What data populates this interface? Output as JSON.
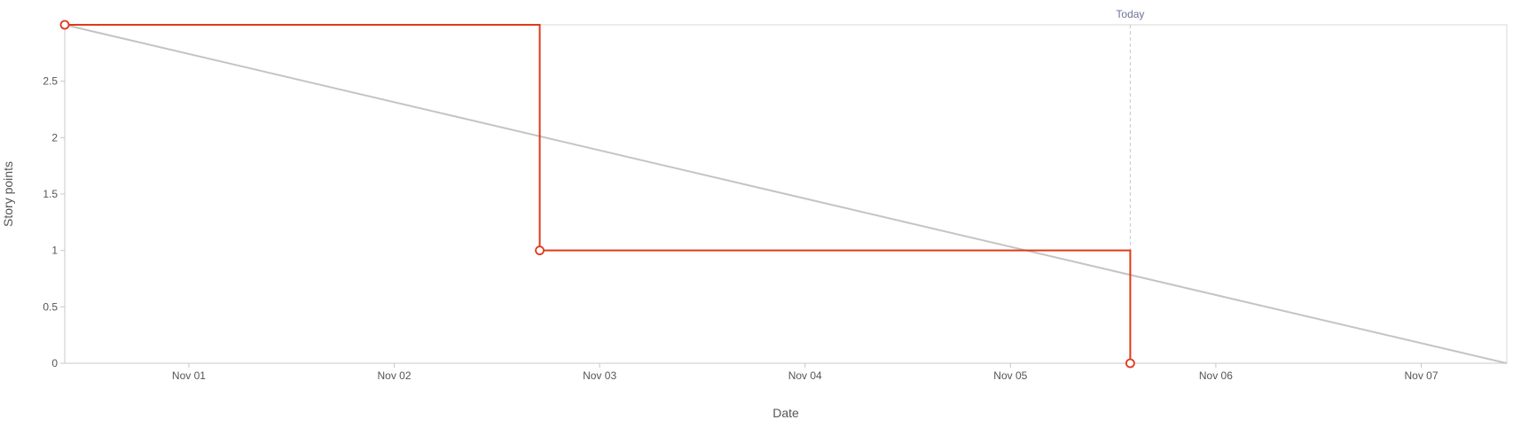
{
  "chart_data": {
    "type": "line",
    "xlabel": "Date",
    "ylabel": "Story points",
    "x_range": [
      "2023-10-31T09:30",
      "2023-11-07T10:00"
    ],
    "ylim": [
      0,
      3
    ],
    "y_ticks": [
      0,
      0.5,
      1,
      1.5,
      2,
      2.5
    ],
    "y_tick_labels": [
      "0",
      "0.5",
      "1",
      "1.5",
      "2",
      "2.5"
    ],
    "x_ticks": [
      "2023-11-01",
      "2023-11-02",
      "2023-11-03",
      "2023-11-04",
      "2023-11-05",
      "2023-11-06",
      "2023-11-07"
    ],
    "x_tick_labels": [
      "Nov 01",
      "Nov 02",
      "Nov 03",
      "Nov 04",
      "Nov 05",
      "Nov 06",
      "Nov 07"
    ],
    "today_marker": {
      "label": "Today",
      "x": "2023-11-05T14:00"
    },
    "series": [
      {
        "style": "step",
        "color": "#e0391b",
        "points": [
          {
            "x": "2023-10-31T09:30",
            "y": 3
          },
          {
            "x": "2023-11-02T17:00",
            "y": 1
          },
          {
            "x": "2023-11-05T14:00",
            "y": 0
          }
        ]
      },
      {
        "style": "line",
        "color": "#c4c4c4",
        "points": [
          {
            "x": "2023-10-31T09:30",
            "y": 3
          },
          {
            "x": "2023-11-07T10:00",
            "y": 0
          }
        ]
      }
    ],
    "grid": false
  }
}
